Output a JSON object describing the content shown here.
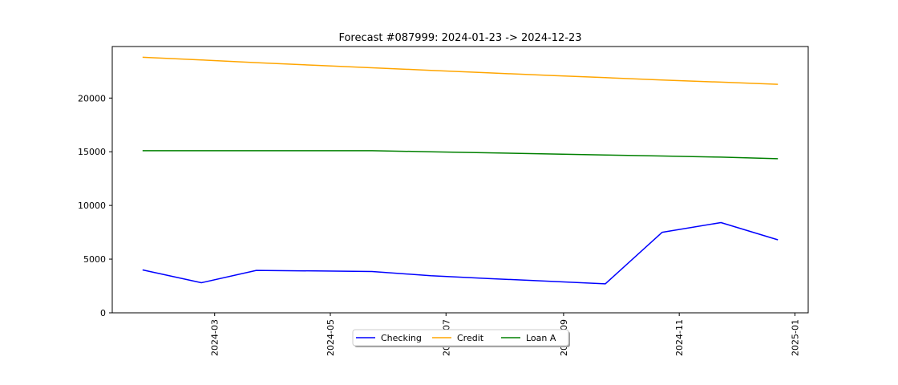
{
  "chart_data": {
    "type": "line",
    "title": "Forecast #087999: 2024-01-23 -> 2024-12-23",
    "xlabel": "",
    "ylabel": "",
    "x": [
      "2024-01-23",
      "2024-02-23",
      "2024-03-23",
      "2024-04-23",
      "2024-05-23",
      "2024-06-23",
      "2024-07-23",
      "2024-08-23",
      "2024-09-23",
      "2024-10-23",
      "2024-11-23",
      "2024-12-23"
    ],
    "series": [
      {
        "name": "Checking",
        "color": "#0000ff",
        "values": [
          4000,
          2800,
          3950,
          3900,
          3850,
          3450,
          3200,
          2950,
          2700,
          7500,
          8400,
          6800
        ]
      },
      {
        "name": "Credit",
        "color": "#ffa500",
        "values": [
          23800,
          23550,
          23300,
          23050,
          22820,
          22580,
          22350,
          22120,
          21900,
          21680,
          21480,
          21280
        ]
      },
      {
        "name": "Loan A",
        "color": "#008000",
        "values": [
          15100,
          15100,
          15100,
          15100,
          15100,
          15000,
          14900,
          14800,
          14700,
          14600,
          14500,
          14350
        ]
      }
    ],
    "xlim": [
      "2024-01-07",
      "2025-01-08"
    ],
    "ylim": [
      0,
      24800
    ],
    "yticks": [
      0,
      5000,
      10000,
      15000,
      20000
    ],
    "xticks": [
      "2024-03",
      "2024-05",
      "2024-07",
      "2024-09",
      "2024-11",
      "2025-01"
    ],
    "grid": false,
    "legend_position": "bottom-center",
    "legend_columns": 3
  }
}
